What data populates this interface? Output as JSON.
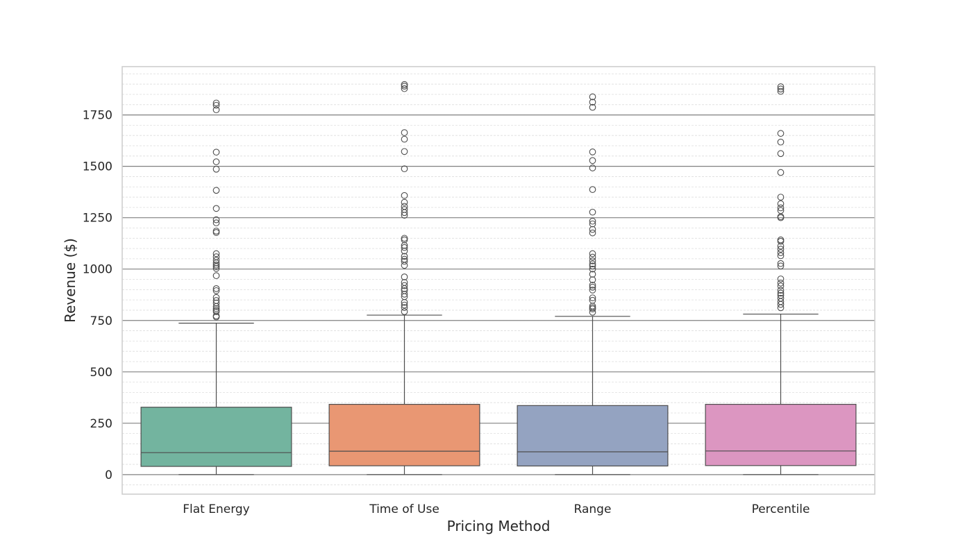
{
  "chart_data": {
    "type": "box",
    "title": "",
    "xlabel": "Pricing Method",
    "ylabel": "Revenue ($)",
    "ylim": [
      -95,
      1985
    ],
    "yticks": [
      0,
      250,
      500,
      750,
      1000,
      1250,
      1500,
      1750
    ],
    "grid": {
      "major": true,
      "minor": true
    },
    "categories": [
      "Flat Energy",
      "Time of Use",
      "Range",
      "Percentile"
    ],
    "colors": [
      "#73b49f",
      "#e99773",
      "#94a3c1",
      "#dc96c1"
    ],
    "boxes": [
      {
        "name": "Flat Energy",
        "whisker_low": 0,
        "q1": 40,
        "median": 107,
        "q3": 328,
        "whisker_high": 737,
        "outliers": [
          1808,
          1797,
          1775,
          1569,
          1522,
          1486,
          1383,
          1295,
          1240,
          1225,
          1185,
          1178,
          1075,
          1060,
          1043,
          1030,
          1020,
          1012,
          1003,
          968,
          905,
          895,
          862,
          847,
          835,
          818,
          808,
          800,
          793,
          772,
          767
        ]
      },
      {
        "name": "Time of Use",
        "whisker_low": 0,
        "q1": 43,
        "median": 114,
        "q3": 342,
        "whisker_high": 776,
        "outliers": [
          1898,
          1890,
          1878,
          1664,
          1632,
          1572,
          1488,
          1358,
          1325,
          1305,
          1290,
          1275,
          1262,
          1150,
          1142,
          1115,
          1105,
          1088,
          1062,
          1048,
          1038,
          1018,
          962,
          935,
          920,
          905,
          895,
          878,
          866,
          838,
          825,
          813,
          793
        ]
      },
      {
        "name": "Range",
        "whisker_low": 0,
        "q1": 42,
        "median": 111,
        "q3": 336,
        "whisker_high": 770,
        "outliers": [
          1838,
          1812,
          1787,
          1570,
          1528,
          1492,
          1387,
          1277,
          1233,
          1220,
          1193,
          1176,
          1075,
          1058,
          1040,
          1025,
          1015,
          1000,
          975,
          948,
          922,
          912,
          898,
          860,
          848,
          820,
          812,
          806,
          790
        ]
      },
      {
        "name": "Percentile",
        "whisker_low": 0,
        "q1": 44,
        "median": 115,
        "q3": 342,
        "whisker_high": 781,
        "outliers": [
          1887,
          1876,
          1865,
          1660,
          1618,
          1562,
          1470,
          1350,
          1318,
          1298,
          1285,
          1255,
          1250,
          1142,
          1135,
          1112,
          1097,
          1080,
          1065,
          1027,
          1015,
          952,
          932,
          918,
          897,
          883,
          872,
          858,
          842,
          828,
          812
        ]
      }
    ]
  }
}
